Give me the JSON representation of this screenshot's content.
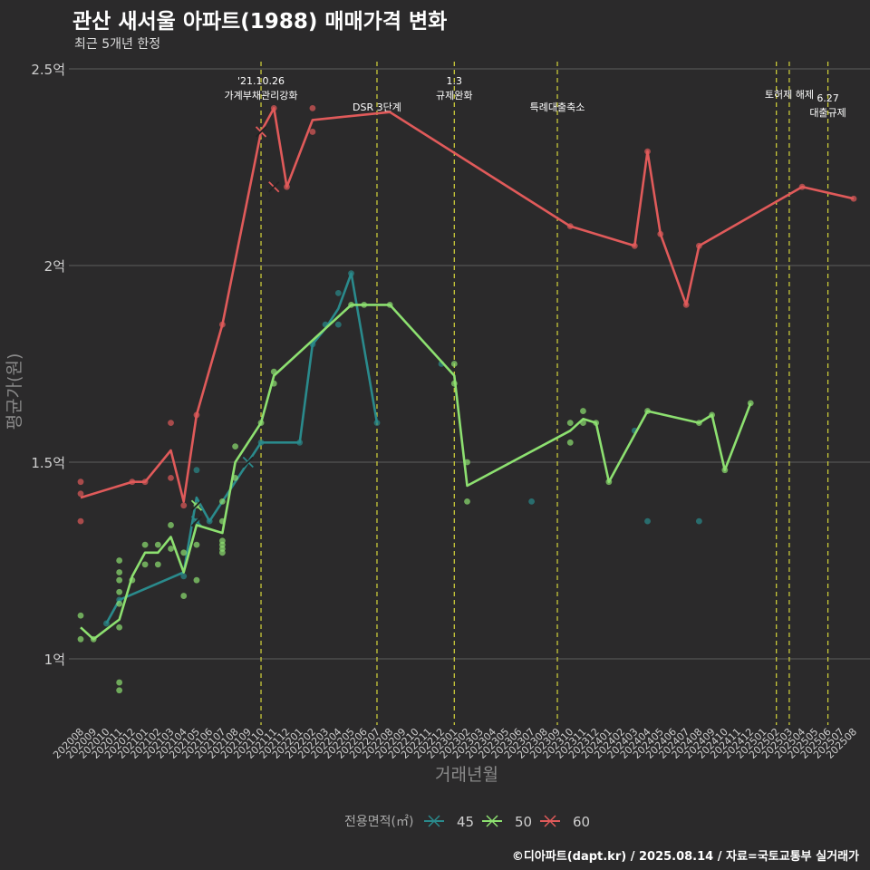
{
  "header": {
    "title": "관산 새서울 아파트(1988) 매매가격 변화",
    "subtitle": "최근 5개년 한정"
  },
  "caption": "©디아파트(dapt.kr) / 2025.08.14 / 자료=국토교통부 실거래가",
  "chart_data": {
    "type": "line",
    "xlabel": "거래년월",
    "ylabel": "평균가(원)",
    "ylim": [
      0.85,
      2.5
    ],
    "y_ticks": [
      {
        "value": 1.0,
        "label": "1억"
      },
      {
        "value": 1.5,
        "label": "1.5억"
      },
      {
        "value": 2.0,
        "label": "2억"
      },
      {
        "value": 2.5,
        "label": "2.5억"
      }
    ],
    "x_categories": [
      "202008",
      "202009",
      "202010",
      "202011",
      "202012",
      "202101",
      "202102",
      "202103",
      "202104",
      "202105",
      "202106",
      "202107",
      "202108",
      "202109",
      "202110",
      "202111",
      "202112",
      "202201",
      "202202",
      "202203",
      "202204",
      "202205",
      "202206",
      "202207",
      "202208",
      "202209",
      "202210",
      "202211",
      "202212",
      "202301",
      "202302",
      "202303",
      "202304",
      "202305",
      "202306",
      "202307",
      "202308",
      "202309",
      "202310",
      "202311",
      "202312",
      "202401",
      "202402",
      "202403",
      "202404",
      "202405",
      "202406",
      "202407",
      "202408",
      "202409",
      "202410",
      "202411",
      "202412",
      "202501",
      "202502",
      "202503",
      "202504",
      "202505",
      "202506",
      "202507",
      "202508"
    ],
    "legend_title": "전용면적(㎡)",
    "legend_position": "bottom",
    "series": [
      {
        "name": "45",
        "color": "#2a8a8c",
        "line": [
          [
            "202010",
            1.09
          ],
          [
            "202011",
            1.15
          ],
          [
            "202104",
            1.22
          ],
          [
            "202105",
            1.41
          ],
          [
            "202106",
            1.35
          ],
          [
            "202110",
            1.55
          ],
          [
            "202111",
            1.55
          ],
          [
            "202201",
            1.55
          ],
          [
            "202202",
            1.8
          ],
          [
            "202203",
            1.84
          ],
          [
            "202204",
            1.89
          ],
          [
            "202205",
            1.98
          ],
          [
            "202207",
            1.6
          ]
        ],
        "points": [
          [
            "202010",
            1.09
          ],
          [
            "202011",
            1.15
          ],
          [
            "202104",
            1.21
          ],
          [
            "202105",
            1.48
          ],
          [
            "202105",
            1.35
          ],
          [
            "202106",
            1.35
          ],
          [
            "202110",
            1.55
          ],
          [
            "202201",
            1.55
          ],
          [
            "202202",
            1.8
          ],
          [
            "202203",
            1.85
          ],
          [
            "202204",
            1.93
          ],
          [
            "202204",
            1.85
          ],
          [
            "202205",
            1.98
          ],
          [
            "202207",
            1.6
          ],
          [
            "202212",
            1.75
          ],
          [
            "202307",
            1.4
          ],
          [
            "202403",
            1.58
          ],
          [
            "202404",
            1.35
          ],
          [
            "202408",
            1.35
          ]
        ],
        "crosses": [
          [
            "202105",
            1.35
          ],
          [
            "202109",
            1.5
          ]
        ]
      },
      {
        "name": "50",
        "color": "#8de070",
        "line": [
          [
            "202008",
            1.08
          ],
          [
            "202009",
            1.05
          ],
          [
            "202011",
            1.1
          ],
          [
            "202012",
            1.21
          ],
          [
            "202101",
            1.27
          ],
          [
            "202102",
            1.27
          ],
          [
            "202103",
            1.31
          ],
          [
            "202104",
            1.22
          ],
          [
            "202105",
            1.34
          ],
          [
            "202106",
            1.33
          ],
          [
            "202107",
            1.32
          ],
          [
            "202108",
            1.5
          ],
          [
            "202110",
            1.6
          ],
          [
            "202111",
            1.72
          ],
          [
            "202205",
            1.9
          ],
          [
            "202208",
            1.9
          ],
          [
            "202301",
            1.72
          ],
          [
            "202302",
            1.44
          ],
          [
            "202310",
            1.58
          ],
          [
            "202311",
            1.61
          ],
          [
            "202312",
            1.6
          ],
          [
            "202401",
            1.45
          ],
          [
            "202404",
            1.63
          ],
          [
            "202408",
            1.6
          ],
          [
            "202409",
            1.62
          ],
          [
            "202410",
            1.48
          ],
          [
            "202412",
            1.65
          ]
        ],
        "points": [
          [
            "202008",
            1.11
          ],
          [
            "202008",
            1.05
          ],
          [
            "202009",
            1.05
          ],
          [
            "202011",
            1.25
          ],
          [
            "202011",
            1.22
          ],
          [
            "202011",
            1.2
          ],
          [
            "202011",
            1.17
          ],
          [
            "202011",
            1.14
          ],
          [
            "202011",
            1.08
          ],
          [
            "202011",
            0.94
          ],
          [
            "202011",
            0.92
          ],
          [
            "202012",
            1.2
          ],
          [
            "202101",
            1.29
          ],
          [
            "202101",
            1.24
          ],
          [
            "202102",
            1.29
          ],
          [
            "202102",
            1.24
          ],
          [
            "202103",
            1.34
          ],
          [
            "202103",
            1.28
          ],
          [
            "202104",
            1.27
          ],
          [
            "202104",
            1.16
          ],
          [
            "202105",
            1.39
          ],
          [
            "202105",
            1.29
          ],
          [
            "202105",
            1.2
          ],
          [
            "202107",
            1.4
          ],
          [
            "202107",
            1.35
          ],
          [
            "202107",
            1.3
          ],
          [
            "202107",
            1.29
          ],
          [
            "202107",
            1.28
          ],
          [
            "202107",
            1.27
          ],
          [
            "202108",
            1.54
          ],
          [
            "202108",
            1.46
          ],
          [
            "202110",
            1.6
          ],
          [
            "202111",
            1.73
          ],
          [
            "202111",
            1.7
          ],
          [
            "202205",
            1.9
          ],
          [
            "202206",
            1.9
          ],
          [
            "202208",
            1.9
          ],
          [
            "202301",
            1.75
          ],
          [
            "202301",
            1.7
          ],
          [
            "202302",
            1.5
          ],
          [
            "202302",
            1.4
          ],
          [
            "202310",
            1.6
          ],
          [
            "202310",
            1.55
          ],
          [
            "202311",
            1.63
          ],
          [
            "202311",
            1.6
          ],
          [
            "202312",
            1.6
          ],
          [
            "202401",
            1.45
          ],
          [
            "202404",
            1.63
          ],
          [
            "202408",
            1.6
          ],
          [
            "202409",
            1.62
          ],
          [
            "202410",
            1.48
          ],
          [
            "202412",
            1.65
          ]
        ],
        "crosses": [
          [
            "202105",
            1.39
          ]
        ]
      },
      {
        "name": "60",
        "color": "#e05a5a",
        "line": [
          [
            "202008",
            1.41
          ],
          [
            "202012",
            1.45
          ],
          [
            "202101",
            1.45
          ],
          [
            "202103",
            1.53
          ],
          [
            "202104",
            1.4
          ],
          [
            "202105",
            1.62
          ],
          [
            "202107",
            1.85
          ],
          [
            "202110",
            2.34
          ],
          [
            "202111",
            2.4
          ],
          [
            "202112",
            2.2
          ],
          [
            "202202",
            2.37
          ],
          [
            "202208",
            2.39
          ],
          [
            "202310",
            2.1
          ],
          [
            "202403",
            2.05
          ],
          [
            "202404",
            2.29
          ],
          [
            "202405",
            2.08
          ],
          [
            "202407",
            1.9
          ],
          [
            "202408",
            2.05
          ],
          [
            "202504",
            2.2
          ],
          [
            "202508",
            2.17
          ]
        ],
        "points": [
          [
            "202008",
            1.45
          ],
          [
            "202008",
            1.42
          ],
          [
            "202008",
            1.35
          ],
          [
            "202012",
            1.45
          ],
          [
            "202101",
            1.45
          ],
          [
            "202103",
            1.6
          ],
          [
            "202103",
            1.46
          ],
          [
            "202104",
            1.39
          ],
          [
            "202105",
            1.62
          ],
          [
            "202107",
            1.85
          ],
          [
            "202111",
            2.4
          ],
          [
            "202112",
            2.2
          ],
          [
            "202202",
            2.4
          ],
          [
            "202202",
            2.34
          ],
          [
            "202310",
            2.1
          ],
          [
            "202403",
            2.05
          ],
          [
            "202404",
            2.29
          ],
          [
            "202405",
            2.08
          ],
          [
            "202407",
            1.9
          ],
          [
            "202408",
            2.05
          ],
          [
            "202504",
            2.2
          ],
          [
            "202508",
            2.17
          ]
        ],
        "crosses": [
          [
            "202110",
            2.34
          ],
          [
            "202111",
            2.2
          ]
        ]
      }
    ],
    "events": [
      {
        "month": "202110",
        "lines": [
          "'21.10.26",
          "가계부채관리강화"
        ],
        "level": 0
      },
      {
        "month": "202207",
        "lines": [
          "DSR 3단계"
        ],
        "level": 2
      },
      {
        "month": "202301",
        "lines": [
          "1.3",
          "규제완화"
        ],
        "level": 0
      },
      {
        "month": "202309",
        "lines": [
          "특례대출축소"
        ],
        "level": 2
      },
      {
        "month": "202502",
        "lines": [],
        "level": 0
      },
      {
        "month": "202503",
        "lines": [
          "토허제 해제"
        ],
        "level": 1
      },
      {
        "month": "202506",
        "lines": [
          "6.27",
          "대출규제"
        ],
        "level": 3
      }
    ]
  }
}
